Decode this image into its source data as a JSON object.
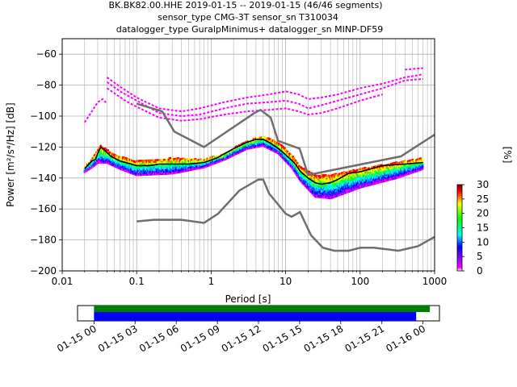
{
  "chart_data": {
    "type": "heatmap",
    "title_lines": [
      "BK.BK82.00.HHE   2019-01-15 -- 2019-01-15  (46/46 segments)",
      "sensor_type CMG-3T sensor_sn T310034",
      "datalogger_type GuralpMinimus+ datalogger_sn MINP-DF59"
    ],
    "xlabel": "Period [s]",
    "ylabel": "Power [m²/s⁴/Hz] [dB]",
    "x_scale": "log",
    "xlim": [
      0.01,
      1000
    ],
    "ylim": [
      -200,
      -50
    ],
    "x_ticks": [
      {
        "value": 0.01,
        "label": "0.01"
      },
      {
        "value": 0.1,
        "label": "0.1"
      },
      {
        "value": 1,
        "label": "1"
      },
      {
        "value": 10,
        "label": "10"
      },
      {
        "value": 100,
        "label": "100"
      },
      {
        "value": 1000,
        "label": "1000"
      }
    ],
    "y_ticks": [
      -60,
      -80,
      -100,
      -120,
      -140,
      -160,
      -180,
      -200
    ],
    "grid": true,
    "colorbar": {
      "label": "[%]",
      "range": [
        0,
        30
      ],
      "ticks": [
        0,
        5,
        10,
        15,
        20,
        25,
        30
      ],
      "colors": [
        "#ffffff",
        "#ff00ff",
        "#0000ff",
        "#00ffff",
        "#00ff00",
        "#ffff00",
        "#ff0000",
        "#800000"
      ]
    },
    "noise_models": {
      "color": "#6e6e6e",
      "high_noise_model": [
        [
          0.1,
          -92
        ],
        [
          0.22,
          -97
        ],
        [
          0.32,
          -110
        ],
        [
          0.8,
          -120
        ],
        [
          3.8,
          -98
        ],
        [
          4.6,
          -96
        ],
        [
          6.3,
          -101
        ],
        [
          7.9,
          -116
        ],
        [
          15.4,
          -121
        ],
        [
          20,
          -138
        ],
        [
          354,
          -126
        ],
        [
          1000,
          -112
        ]
      ],
      "low_noise_model": [
        [
          0.1,
          -168
        ],
        [
          0.17,
          -167
        ],
        [
          0.4,
          -167
        ],
        [
          0.8,
          -169
        ],
        [
          1.24,
          -163
        ],
        [
          2.4,
          -148
        ],
        [
          4.3,
          -141
        ],
        [
          5,
          -141
        ],
        [
          6,
          -150
        ],
        [
          10,
          -163
        ],
        [
          12,
          -165
        ],
        [
          15.6,
          -162
        ],
        [
          21.9,
          -177
        ],
        [
          31.6,
          -185
        ],
        [
          45,
          -187
        ],
        [
          70,
          -187
        ],
        [
          101,
          -185
        ],
        [
          154,
          -185
        ],
        [
          328,
          -187
        ],
        [
          600,
          -184
        ],
        [
          1000,
          -178
        ]
      ]
    },
    "mean_curve": {
      "color": "#000000",
      "points": [
        [
          0.02,
          -134
        ],
        [
          0.025,
          -129
        ],
        [
          0.028,
          -128
        ],
        [
          0.03,
          -124
        ],
        [
          0.033,
          -120
        ],
        [
          0.037,
          -122
        ],
        [
          0.045,
          -126
        ],
        [
          0.06,
          -129
        ],
        [
          0.1,
          -132
        ],
        [
          0.15,
          -132
        ],
        [
          0.2,
          -131
        ],
        [
          0.3,
          -131
        ],
        [
          0.5,
          -131
        ],
        [
          0.8,
          -130
        ],
        [
          1.2,
          -127
        ],
        [
          2,
          -121
        ],
        [
          3,
          -117
        ],
        [
          4,
          -115
        ],
        [
          5,
          -115
        ],
        [
          6,
          -117
        ],
        [
          8,
          -121
        ],
        [
          10,
          -125
        ],
        [
          13,
          -130
        ],
        [
          16,
          -136
        ],
        [
          20,
          -140
        ],
        [
          25,
          -143
        ],
        [
          30,
          -144
        ],
        [
          40,
          -143
        ],
        [
          50,
          -141
        ],
        [
          70,
          -137
        ],
        [
          100,
          -136
        ],
        [
          200,
          -132
        ],
        [
          400,
          -131
        ],
        [
          700,
          -130
        ]
      ]
    },
    "outlier_curves": {
      "color": "#ff00ff",
      "series": [
        [
          [
            0.04,
            -75
          ],
          [
            0.06,
            -81
          ],
          [
            0.1,
            -88
          ],
          [
            0.2,
            -95
          ],
          [
            0.4,
            -97
          ],
          [
            0.7,
            -95
          ],
          [
            1.5,
            -91
          ],
          [
            3,
            -88
          ],
          [
            6,
            -86
          ],
          [
            10,
            -84
          ],
          [
            15,
            -86
          ],
          [
            20,
            -89
          ],
          [
            30,
            -88
          ],
          [
            50,
            -86
          ],
          [
            100,
            -82
          ],
          [
            200,
            -79
          ],
          [
            400,
            -75
          ],
          [
            700,
            -73
          ]
        ],
        [
          [
            0.04,
            -78
          ],
          [
            0.06,
            -84
          ],
          [
            0.1,
            -90
          ],
          [
            0.2,
            -98
          ],
          [
            0.4,
            -100
          ],
          [
            0.7,
            -99
          ],
          [
            1.5,
            -95
          ],
          [
            3,
            -92
          ],
          [
            6,
            -91
          ],
          [
            10,
            -90
          ],
          [
            15,
            -92
          ],
          [
            20,
            -95
          ],
          [
            30,
            -93
          ],
          [
            50,
            -90
          ],
          [
            100,
            -86
          ],
          [
            200,
            -82
          ],
          [
            400,
            -77
          ],
          [
            700,
            -76
          ]
        ],
        [
          [
            0.04,
            -82
          ],
          [
            0.07,
            -90
          ],
          [
            0.1,
            -94
          ],
          [
            0.2,
            -101
          ],
          [
            0.4,
            -103
          ],
          [
            0.7,
            -102
          ],
          [
            1.5,
            -99
          ],
          [
            3,
            -97
          ],
          [
            6,
            -96
          ],
          [
            10,
            -95
          ],
          [
            15,
            -97
          ],
          [
            20,
            -99
          ],
          [
            30,
            -98
          ],
          [
            50,
            -95
          ],
          [
            100,
            -90
          ],
          [
            200,
            -86
          ]
        ],
        [
          [
            0.02,
            -104
          ],
          [
            0.025,
            -97
          ],
          [
            0.03,
            -91
          ],
          [
            0.035,
            -89
          ],
          [
            0.04,
            -92
          ]
        ],
        [
          [
            400,
            -70
          ],
          [
            700,
            -69
          ]
        ]
      ]
    },
    "psd_spread": {
      "upper": [
        [
          0.02,
          -133
        ],
        [
          0.025,
          -128
        ],
        [
          0.03,
          -122
        ],
        [
          0.033,
          -119
        ],
        [
          0.05,
          -125
        ],
        [
          0.1,
          -129
        ],
        [
          0.3,
          -127
        ],
        [
          0.8,
          -128
        ],
        [
          1.5,
          -124
        ],
        [
          3,
          -116
        ],
        [
          5,
          -113
        ],
        [
          8,
          -117
        ],
        [
          12,
          -125
        ],
        [
          16,
          -133
        ],
        [
          25,
          -138
        ],
        [
          40,
          -138
        ],
        [
          100,
          -134
        ],
        [
          300,
          -130
        ],
        [
          700,
          -127
        ]
      ],
      "lower": [
        [
          0.02,
          -136
        ],
        [
          0.025,
          -133
        ],
        [
          0.03,
          -130
        ],
        [
          0.04,
          -130
        ],
        [
          0.06,
          -134
        ],
        [
          0.1,
          -138
        ],
        [
          0.3,
          -137
        ],
        [
          0.8,
          -133
        ],
        [
          1.5,
          -128
        ],
        [
          3,
          -121
        ],
        [
          5,
          -119
        ],
        [
          8,
          -124
        ],
        [
          12,
          -133
        ],
        [
          16,
          -142
        ],
        [
          25,
          -152
        ],
        [
          40,
          -153
        ],
        [
          100,
          -146
        ],
        [
          300,
          -140
        ],
        [
          700,
          -134
        ]
      ]
    }
  },
  "coverage": {
    "time_ticks": [
      "01-15 00",
      "01-15 03",
      "01-15 06",
      "01-15 09",
      "01-15 12",
      "01-15 15",
      "01-15 18",
      "01-15 21",
      "01-16 00"
    ],
    "data_bar": {
      "start_hour": 0,
      "end_hour": 23.5,
      "color": "#0000ff"
    },
    "segment_bar": {
      "start_hour": 0,
      "end_hour": 24.5,
      "color": "#008000"
    },
    "xlim_hours": [
      -1.2,
      25.2
    ]
  }
}
